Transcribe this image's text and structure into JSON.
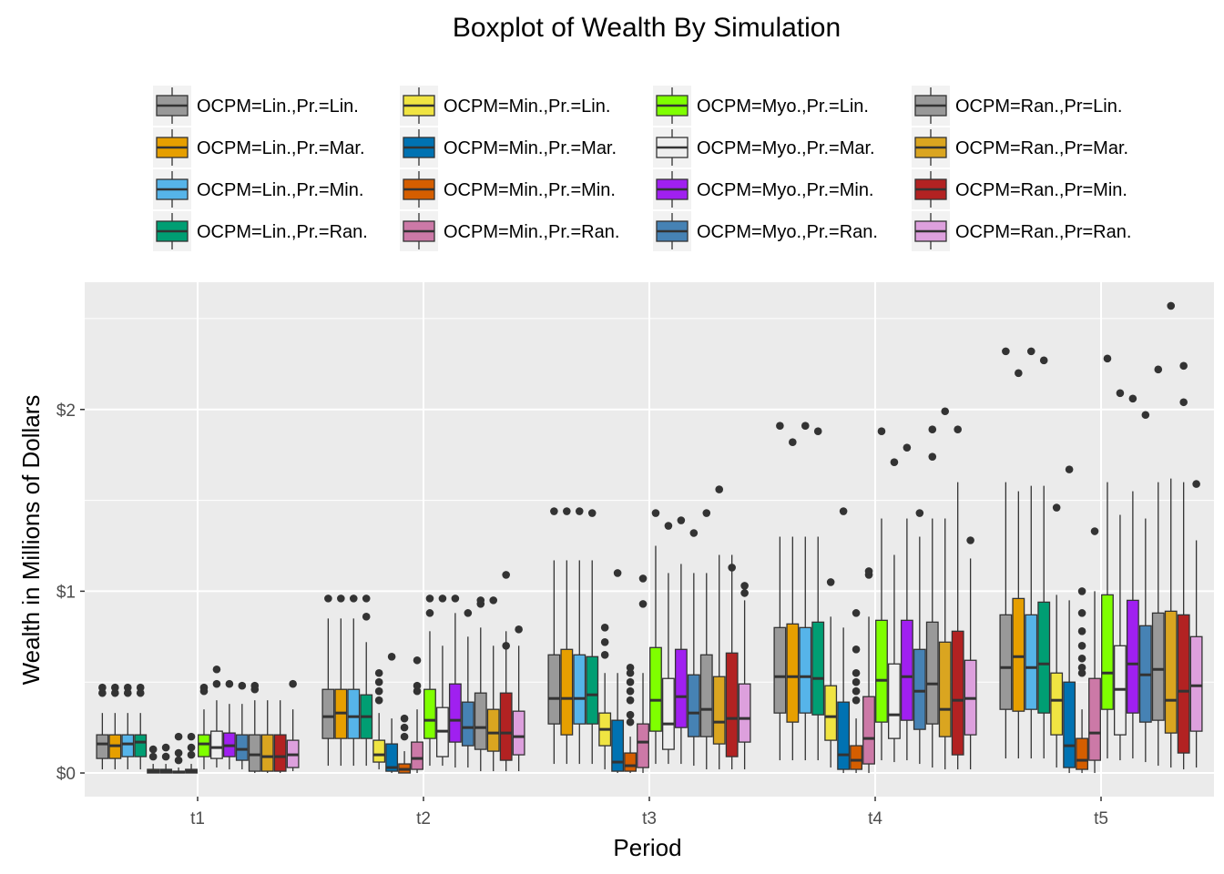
{
  "chart_data": {
    "type": "boxplot",
    "title": "Boxplot of Wealth By Simulation",
    "xlabel": "Period",
    "ylabel": "Wealth in Millions of Dollars",
    "ylim": [
      -0.13,
      2.7
    ],
    "y_ticks": [
      {
        "value": 0,
        "label": "$0"
      },
      {
        "value": 1,
        "label": "$1"
      },
      {
        "value": 2,
        "label": "$2"
      }
    ],
    "categories": [
      "t1",
      "t2",
      "t3",
      "t4",
      "t5"
    ],
    "grid": true,
    "legend_position": "top",
    "series": [
      {
        "name": "OCPM=Lin.,Pr.=Lin.",
        "color": "#999999",
        "boxes": [
          {
            "min": 0.02,
            "q1": 0.08,
            "median": 0.16,
            "q3": 0.21,
            "max": 0.33,
            "outliers": [
              0.44,
              0.47
            ]
          },
          {
            "min": 0.04,
            "q1": 0.19,
            "median": 0.31,
            "q3": 0.46,
            "max": 0.85,
            "outliers": [
              0.96
            ]
          },
          {
            "min": 0.05,
            "q1": 0.27,
            "median": 0.41,
            "q3": 0.65,
            "max": 1.17,
            "outliers": [
              1.44
            ]
          },
          {
            "min": 0.07,
            "q1": 0.33,
            "median": 0.53,
            "q3": 0.8,
            "max": 1.3,
            "outliers": [
              1.91
            ]
          },
          {
            "min": 0.08,
            "q1": 0.35,
            "median": 0.58,
            "q3": 0.87,
            "max": 1.6,
            "outliers": [
              2.32
            ]
          }
        ]
      },
      {
        "name": "OCPM=Lin.,Pr.=Mar.",
        "color": "#E69F00",
        "boxes": [
          {
            "min": 0.02,
            "q1": 0.08,
            "median": 0.15,
            "q3": 0.21,
            "max": 0.33,
            "outliers": [
              0.44,
              0.47
            ]
          },
          {
            "min": 0.04,
            "q1": 0.19,
            "median": 0.33,
            "q3": 0.46,
            "max": 0.85,
            "outliers": [
              0.96
            ]
          },
          {
            "min": 0.05,
            "q1": 0.21,
            "median": 0.41,
            "q3": 0.68,
            "max": 1.17,
            "outliers": [
              1.44
            ]
          },
          {
            "min": 0.07,
            "q1": 0.28,
            "median": 0.53,
            "q3": 0.82,
            "max": 1.3,
            "outliers": [
              1.82
            ]
          },
          {
            "min": 0.08,
            "q1": 0.34,
            "median": 0.64,
            "q3": 0.96,
            "max": 1.55,
            "outliers": [
              2.2
            ]
          }
        ]
      },
      {
        "name": "OCPM=Lin.,Pr.=Min.",
        "color": "#56B4E9",
        "boxes": [
          {
            "min": 0.02,
            "q1": 0.09,
            "median": 0.16,
            "q3": 0.21,
            "max": 0.33,
            "outliers": [
              0.44,
              0.47
            ]
          },
          {
            "min": 0.04,
            "q1": 0.19,
            "median": 0.31,
            "q3": 0.46,
            "max": 0.85,
            "outliers": [
              0.96
            ]
          },
          {
            "min": 0.05,
            "q1": 0.27,
            "median": 0.41,
            "q3": 0.65,
            "max": 1.17,
            "outliers": [
              1.44
            ]
          },
          {
            "min": 0.07,
            "q1": 0.33,
            "median": 0.53,
            "q3": 0.8,
            "max": 1.3,
            "outliers": [
              1.91
            ]
          },
          {
            "min": 0.08,
            "q1": 0.35,
            "median": 0.58,
            "q3": 0.87,
            "max": 1.58,
            "outliers": [
              2.32
            ]
          }
        ]
      },
      {
        "name": "OCPM=Lin.,Pr.=Ran.",
        "color": "#009E73",
        "boxes": [
          {
            "min": 0.02,
            "q1": 0.09,
            "median": 0.17,
            "q3": 0.21,
            "max": 0.33,
            "outliers": [
              0.44,
              0.47
            ]
          },
          {
            "min": 0.04,
            "q1": 0.19,
            "median": 0.31,
            "q3": 0.43,
            "max": 0.72,
            "outliers": [
              0.86,
              0.96
            ]
          },
          {
            "min": 0.05,
            "q1": 0.27,
            "median": 0.43,
            "q3": 0.64,
            "max": 1.17,
            "outliers": [
              1.43
            ]
          },
          {
            "min": 0.07,
            "q1": 0.32,
            "median": 0.52,
            "q3": 0.83,
            "max": 1.3,
            "outliers": [
              1.88
            ]
          },
          {
            "min": 0.08,
            "q1": 0.33,
            "median": 0.6,
            "q3": 0.94,
            "max": 1.58,
            "outliers": [
              2.27
            ]
          }
        ]
      },
      {
        "name": "OCPM=Min.,Pr.=Lin.",
        "color": "#F0E442",
        "boxes": [
          {
            "min": 0.0,
            "q1": 0.0,
            "median": 0.01,
            "q3": 0.02,
            "max": 0.05,
            "outliers": [
              0.09,
              0.13
            ]
          },
          {
            "min": 0.02,
            "q1": 0.06,
            "median": 0.1,
            "q3": 0.18,
            "max": 0.33,
            "outliers": [
              0.4,
              0.45,
              0.5,
              0.55
            ]
          },
          {
            "min": 0.02,
            "q1": 0.15,
            "median": 0.24,
            "q3": 0.33,
            "max": 0.55,
            "outliers": [
              0.65,
              0.72,
              0.8
            ]
          },
          {
            "min": 0.03,
            "q1": 0.18,
            "median": 0.31,
            "q3": 0.48,
            "max": 0.86,
            "outliers": [
              1.05
            ]
          },
          {
            "min": 0.03,
            "q1": 0.21,
            "median": 0.4,
            "q3": 0.55,
            "max": 0.98,
            "outliers": [
              1.46
            ]
          }
        ]
      },
      {
        "name": "OCPM=Min.,Pr.=Mar.",
        "color": "#0072B2",
        "boxes": [
          {
            "min": 0.0,
            "q1": 0.0,
            "median": 0.01,
            "q3": 0.02,
            "max": 0.05,
            "outliers": [
              0.09,
              0.14
            ]
          },
          {
            "min": 0.0,
            "q1": 0.01,
            "median": 0.03,
            "q3": 0.16,
            "max": 0.3,
            "outliers": [
              0.64
            ]
          },
          {
            "min": 0.0,
            "q1": 0.01,
            "median": 0.06,
            "q3": 0.29,
            "max": 0.55,
            "outliers": [
              1.1
            ]
          },
          {
            "min": 0.0,
            "q1": 0.02,
            "median": 0.1,
            "q3": 0.39,
            "max": 0.8,
            "outliers": [
              1.44
            ]
          },
          {
            "min": 0.0,
            "q1": 0.03,
            "median": 0.15,
            "q3": 0.5,
            "max": 0.95,
            "outliers": [
              1.67
            ]
          }
        ]
      },
      {
        "name": "OCPM=Min.,Pr.=Min.",
        "color": "#D55E00",
        "boxes": [
          {
            "min": 0.0,
            "q1": 0.0,
            "median": 0.005,
            "q3": 0.01,
            "max": 0.03,
            "outliers": [
              0.07,
              0.11,
              0.2
            ]
          },
          {
            "min": 0.0,
            "q1": 0.0,
            "median": 0.02,
            "q3": 0.05,
            "max": 0.12,
            "outliers": [
              0.2,
              0.25,
              0.3
            ]
          },
          {
            "min": 0.0,
            "q1": 0.01,
            "median": 0.04,
            "q3": 0.11,
            "max": 0.2,
            "outliers": [
              0.28,
              0.32,
              0.4,
              0.45,
              0.5,
              0.55,
              0.58
            ]
          },
          {
            "min": 0.0,
            "q1": 0.02,
            "median": 0.07,
            "q3": 0.15,
            "max": 0.3,
            "outliers": [
              0.4,
              0.45,
              0.5,
              0.55,
              0.68,
              0.88
            ]
          },
          {
            "min": 0.0,
            "q1": 0.02,
            "median": 0.07,
            "q3": 0.19,
            "max": 0.35,
            "outliers": [
              0.55,
              0.58,
              0.63,
              0.7,
              0.78,
              0.88,
              1.0
            ]
          }
        ]
      },
      {
        "name": "OCPM=Min.,Pr.=Ran.",
        "color": "#CC79A7",
        "boxes": [
          {
            "min": 0.0,
            "q1": 0.0,
            "median": 0.01,
            "q3": 0.02,
            "max": 0.05,
            "outliers": [
              0.1,
              0.14,
              0.2
            ]
          },
          {
            "min": 0.0,
            "q1": 0.02,
            "median": 0.08,
            "q3": 0.17,
            "max": 0.35,
            "outliers": [
              0.45,
              0.48,
              0.62
            ]
          },
          {
            "min": 0.0,
            "q1": 0.03,
            "median": 0.17,
            "q3": 0.27,
            "max": 0.55,
            "outliers": [
              0.93,
              1.07
            ]
          },
          {
            "min": 0.0,
            "q1": 0.05,
            "median": 0.19,
            "q3": 0.42,
            "max": 0.86,
            "outliers": [
              1.09,
              1.11
            ]
          },
          {
            "min": 0.0,
            "q1": 0.07,
            "median": 0.22,
            "q3": 0.52,
            "max": 1.0,
            "outliers": [
              1.33
            ]
          }
        ]
      },
      {
        "name": "OCPM=Myo.,Pr.=Lin.",
        "color": "#7FFF00",
        "boxes": [
          {
            "min": 0.02,
            "q1": 0.09,
            "median": 0.16,
            "q3": 0.21,
            "max": 0.35,
            "outliers": [
              0.45,
              0.47
            ]
          },
          {
            "min": 0.04,
            "q1": 0.19,
            "median": 0.29,
            "q3": 0.46,
            "max": 0.78,
            "outliers": [
              0.88,
              0.96
            ]
          },
          {
            "min": 0.05,
            "q1": 0.23,
            "median": 0.4,
            "q3": 0.69,
            "max": 1.25,
            "outliers": [
              1.43
            ]
          },
          {
            "min": 0.07,
            "q1": 0.28,
            "median": 0.51,
            "q3": 0.84,
            "max": 1.4,
            "outliers": [
              1.88
            ]
          },
          {
            "min": 0.08,
            "q1": 0.35,
            "median": 0.55,
            "q3": 0.98,
            "max": 1.6,
            "outliers": [
              2.28
            ]
          }
        ]
      },
      {
        "name": "OCPM=Myo.,Pr.=Mar.",
        "color": "#EEEEEE",
        "boxes": [
          {
            "min": 0.03,
            "q1": 0.08,
            "median": 0.14,
            "q3": 0.23,
            "max": 0.4,
            "outliers": [
              0.49,
              0.57
            ]
          },
          {
            "min": 0.04,
            "q1": 0.09,
            "median": 0.23,
            "q3": 0.36,
            "max": 0.7,
            "outliers": [
              0.96
            ]
          },
          {
            "min": 0.05,
            "q1": 0.13,
            "median": 0.27,
            "q3": 0.52,
            "max": 1.1,
            "outliers": [
              1.36
            ]
          },
          {
            "min": 0.06,
            "q1": 0.19,
            "median": 0.32,
            "q3": 0.6,
            "max": 1.2,
            "outliers": [
              1.71
            ]
          },
          {
            "min": 0.07,
            "q1": 0.21,
            "median": 0.46,
            "q3": 0.7,
            "max": 1.42,
            "outliers": [
              2.09
            ]
          }
        ]
      },
      {
        "name": "OCPM=Myo.,Pr.=Min.",
        "color": "#A020F0",
        "boxes": [
          {
            "min": 0.02,
            "q1": 0.09,
            "median": 0.15,
            "q3": 0.22,
            "max": 0.38,
            "outliers": [
              0.49
            ]
          },
          {
            "min": 0.03,
            "q1": 0.17,
            "median": 0.29,
            "q3": 0.49,
            "max": 0.88,
            "outliers": [
              0.96
            ]
          },
          {
            "min": 0.05,
            "q1": 0.25,
            "median": 0.42,
            "q3": 0.68,
            "max": 1.15,
            "outliers": [
              1.39
            ]
          },
          {
            "min": 0.07,
            "q1": 0.29,
            "median": 0.53,
            "q3": 0.84,
            "max": 1.4,
            "outliers": [
              1.79
            ]
          },
          {
            "min": 0.08,
            "q1": 0.33,
            "median": 0.6,
            "q3": 0.95,
            "max": 1.55,
            "outliers": [
              2.06
            ]
          }
        ]
      },
      {
        "name": "OCPM=Myo.,Pr.=Ran.",
        "color": "#4682B4",
        "boxes": [
          {
            "min": 0.02,
            "q1": 0.07,
            "median": 0.13,
            "q3": 0.21,
            "max": 0.38,
            "outliers": [
              0.48
            ]
          },
          {
            "min": 0.03,
            "q1": 0.15,
            "median": 0.25,
            "q3": 0.39,
            "max": 0.75,
            "outliers": [
              0.88
            ]
          },
          {
            "min": 0.04,
            "q1": 0.2,
            "median": 0.33,
            "q3": 0.54,
            "max": 1.1,
            "outliers": [
              1.32
            ]
          },
          {
            "min": 0.05,
            "q1": 0.24,
            "median": 0.45,
            "q3": 0.68,
            "max": 1.3,
            "outliers": [
              1.43
            ]
          },
          {
            "min": 0.06,
            "q1": 0.28,
            "median": 0.54,
            "q3": 0.81,
            "max": 1.4,
            "outliers": [
              1.97
            ]
          }
        ]
      },
      {
        "name": "OCPM=Ran.,Pr=Lin.",
        "color": "#999999",
        "boxes": [
          {
            "min": 0.0,
            "q1": 0.01,
            "median": 0.1,
            "q3": 0.21,
            "max": 0.4,
            "outliers": [
              0.46,
              0.48
            ]
          },
          {
            "min": 0.01,
            "q1": 0.13,
            "median": 0.25,
            "q3": 0.44,
            "max": 0.8,
            "outliers": [
              0.93,
              0.95
            ]
          },
          {
            "min": 0.02,
            "q1": 0.2,
            "median": 0.35,
            "q3": 0.65,
            "max": 1.1,
            "outliers": [
              1.43
            ]
          },
          {
            "min": 0.03,
            "q1": 0.27,
            "median": 0.49,
            "q3": 0.83,
            "max": 1.4,
            "outliers": [
              1.74,
              1.89
            ]
          },
          {
            "min": 0.04,
            "q1": 0.29,
            "median": 0.57,
            "q3": 0.88,
            "max": 1.6,
            "outliers": [
              2.22
            ]
          }
        ]
      },
      {
        "name": "OCPM=Ran.,Pr=Mar.",
        "color": "#DAA520",
        "boxes": [
          {
            "min": 0.0,
            "q1": 0.01,
            "median": 0.09,
            "q3": 0.21,
            "max": 0.4,
            "outliers": []
          },
          {
            "min": 0.01,
            "q1": 0.12,
            "median": 0.22,
            "q3": 0.35,
            "max": 0.7,
            "outliers": [
              0.95
            ]
          },
          {
            "min": 0.02,
            "q1": 0.16,
            "median": 0.28,
            "q3": 0.53,
            "max": 1.2,
            "outliers": [
              1.56
            ]
          },
          {
            "min": 0.02,
            "q1": 0.2,
            "median": 0.35,
            "q3": 0.72,
            "max": 1.4,
            "outliers": [
              1.99
            ]
          },
          {
            "min": 0.03,
            "q1": 0.22,
            "median": 0.4,
            "q3": 0.89,
            "max": 1.62,
            "outliers": [
              2.57
            ]
          }
        ]
      },
      {
        "name": "OCPM=Ran.,Pr=Min.",
        "color": "#B22222",
        "boxes": [
          {
            "min": 0.0,
            "q1": 0.01,
            "median": 0.09,
            "q3": 0.21,
            "max": 0.4,
            "outliers": []
          },
          {
            "min": 0.01,
            "q1": 0.07,
            "median": 0.22,
            "q3": 0.44,
            "max": 0.78,
            "outliers": [
              0.7,
              1.09
            ]
          },
          {
            "min": 0.02,
            "q1": 0.09,
            "median": 0.3,
            "q3": 0.66,
            "max": 1.2,
            "outliers": [
              1.13
            ]
          },
          {
            "min": 0.02,
            "q1": 0.1,
            "median": 0.4,
            "q3": 0.78,
            "max": 1.6,
            "outliers": [
              1.89
            ]
          },
          {
            "min": 0.02,
            "q1": 0.11,
            "median": 0.45,
            "q3": 0.87,
            "max": 1.6,
            "outliers": [
              2.04,
              2.24
            ]
          }
        ]
      },
      {
        "name": "OCPM=Ran.,Pr=Ran.",
        "color": "#DDA0DD",
        "boxes": [
          {
            "min": 0.01,
            "q1": 0.03,
            "median": 0.1,
            "q3": 0.18,
            "max": 0.35,
            "outliers": [
              0.49
            ]
          },
          {
            "min": 0.01,
            "q1": 0.1,
            "median": 0.2,
            "q3": 0.34,
            "max": 0.7,
            "outliers": [
              0.79
            ]
          },
          {
            "min": 0.02,
            "q1": 0.17,
            "median": 0.3,
            "q3": 0.49,
            "max": 0.95,
            "outliers": [
              0.99,
              1.03
            ]
          },
          {
            "min": 0.02,
            "q1": 0.21,
            "median": 0.41,
            "q3": 0.62,
            "max": 1.18,
            "outliers": [
              1.28
            ]
          },
          {
            "min": 0.03,
            "q1": 0.23,
            "median": 0.48,
            "q3": 0.75,
            "max": 1.28,
            "outliers": [
              1.59
            ]
          }
        ]
      }
    ]
  }
}
